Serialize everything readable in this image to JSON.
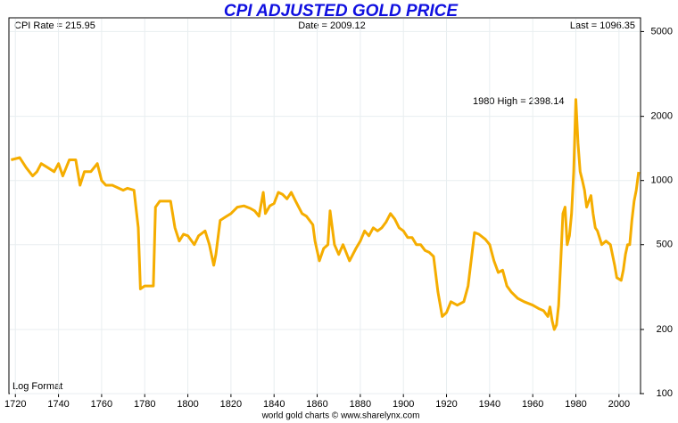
{
  "chart_data": {
    "type": "line",
    "title": "CPI ADJUSTED GOLD PRICE",
    "annotations": {
      "cpi": "CPI Rate = 215.95",
      "date": "Date = 2009.12",
      "last": "Last = 1096.35",
      "high": "1980 High = 2398.14",
      "scale": "Log Format"
    },
    "footer": "world gold charts © www.sharelynx.com",
    "log_y": true,
    "grid": true,
    "x": [
      1718,
      1722,
      1725,
      1728,
      1730,
      1732,
      1735,
      1738,
      1740,
      1742,
      1745,
      1748,
      1750,
      1752,
      1755,
      1758,
      1760,
      1762,
      1765,
      1768,
      1770,
      1772,
      1775,
      1777,
      1778,
      1780,
      1784,
      1785,
      1787,
      1790,
      1792,
      1794,
      1796,
      1798,
      1800,
      1803,
      1805,
      1808,
      1810,
      1812,
      1813,
      1815,
      1818,
      1820,
      1823,
      1826,
      1829,
      1831,
      1833,
      1835,
      1836,
      1838,
      1840,
      1842,
      1844,
      1846,
      1848,
      1850,
      1853,
      1855,
      1858,
      1859,
      1861,
      1863,
      1865,
      1866,
      1868,
      1870,
      1872,
      1875,
      1878,
      1880,
      1882,
      1884,
      1886,
      1888,
      1890,
      1892,
      1894,
      1896,
      1898,
      1900,
      1902,
      1904,
      1906,
      1908,
      1910,
      1912,
      1914,
      1916,
      1918,
      1920,
      1922,
      1925,
      1928,
      1930,
      1932,
      1933,
      1935,
      1938,
      1940,
      1942,
      1944,
      1946,
      1948,
      1950,
      1953,
      1956,
      1960,
      1963,
      1965,
      1967,
      1968,
      1969,
      1970,
      1971,
      1972,
      1973,
      1974,
      1975,
      1976,
      1977,
      1978,
      1979,
      1980,
      1981,
      1982,
      1983,
      1984,
      1985,
      1986,
      1987,
      1988,
      1989,
      1990,
      1992,
      1994,
      1996,
      1998,
      1999,
      2001,
      2002,
      2003,
      2004,
      2005,
      2006,
      2007,
      2008,
      2009.12
    ],
    "series": [
      {
        "name": "CPI adjusted gold",
        "color": "#f5ad00",
        "values": [
          1250,
          1280,
          1150,
          1050,
          1100,
          1200,
          1150,
          1100,
          1200,
          1050,
          1250,
          1250,
          950,
          1100,
          1100,
          1200,
          1000,
          950,
          950,
          920,
          900,
          920,
          900,
          600,
          310,
          320,
          320,
          750,
          800,
          800,
          800,
          600,
          520,
          560,
          550,
          500,
          550,
          580,
          500,
          400,
          450,
          650,
          680,
          700,
          750,
          760,
          740,
          720,
          680,
          880,
          700,
          760,
          780,
          880,
          860,
          820,
          880,
          800,
          700,
          680,
          620,
          520,
          420,
          480,
          500,
          720,
          500,
          450,
          500,
          420,
          480,
          520,
          580,
          550,
          600,
          580,
          600,
          640,
          700,
          660,
          600,
          580,
          540,
          540,
          500,
          500,
          470,
          460,
          440,
          300,
          230,
          240,
          270,
          260,
          270,
          320,
          470,
          570,
          560,
          530,
          500,
          420,
          370,
          380,
          320,
          300,
          280,
          270,
          260,
          250,
          245,
          230,
          255,
          220,
          200,
          210,
          260,
          420,
          700,
          750,
          500,
          550,
          700,
          1100,
          2398.14,
          1500,
          1100,
          1000,
          900,
          750,
          800,
          850,
          700,
          600,
          580,
          500,
          520,
          500,
          400,
          350,
          340,
          380,
          450,
          500,
          500,
          650,
          800,
          900,
          1096.35
        ]
      }
    ],
    "xlim": [
      1717,
      2010
    ],
    "xticks": [
      1720,
      1740,
      1760,
      1780,
      1800,
      1820,
      1840,
      1860,
      1880,
      1900,
      1920,
      1940,
      1960,
      1980,
      2000
    ],
    "ylim": [
      100,
      5800
    ],
    "yticks": [
      100,
      200,
      500,
      1000,
      2000,
      5000
    ]
  }
}
